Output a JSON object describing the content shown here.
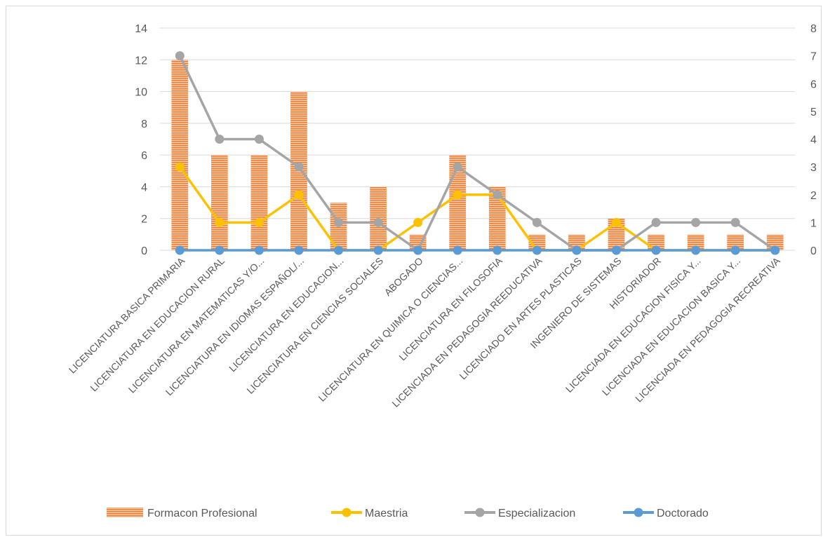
{
  "chart_data": {
    "type": "bar",
    "categories": [
      "LICENCIATURA BASICA PRIMARIA",
      "LICENCIATURA EN EDUCACION RURAL",
      "LICENCIATURA EN MATEMATICAS Y/O...",
      "LICENCIATURA EN IDIOMAS ESPAÑOL/...",
      "LICENCIATURA EN EDUCACION...",
      "LICENCIATURA EN CIENCIAS SOCIALES",
      "ABOGADO",
      "LICENCIATURA EN QUIMICA O CIENCIAS...",
      "LICENCIATURA EN FILOSOFIA",
      "LICENCIADA EN PEDAGOGIA REEDUCATIVA",
      "LICENCIADO EN ARTES PLASTICAS",
      "INGENIERO DE SISTEMAS",
      "HISTORIADOR",
      "LICENCIADA EN EDUCACION FISICA Y...",
      "LICENCIADA EN EDUCACION BASICA Y...",
      "LICENCIADA EN PEDAGOGIA RECREATIVA"
    ],
    "series": [
      {
        "name": "Formacon Profesional",
        "kind": "bar",
        "axis": "left",
        "color": "#ED7D31",
        "values": [
          12,
          6,
          6,
          10,
          3,
          4,
          1,
          6,
          4,
          1,
          1,
          2,
          1,
          1,
          1,
          1
        ]
      },
      {
        "name": "Maestria",
        "kind": "line",
        "axis": "right",
        "color": "#FFC000",
        "values": [
          3,
          1,
          1,
          2,
          0,
          0,
          1,
          2,
          2,
          0,
          0,
          1,
          0,
          0,
          0,
          0
        ]
      },
      {
        "name": "Especializacion",
        "kind": "line",
        "axis": "right",
        "color": "#A5A5A5",
        "values": [
          7,
          4,
          4,
          3,
          1,
          1,
          0,
          3,
          2,
          1,
          0,
          0,
          1,
          1,
          1,
          0
        ]
      },
      {
        "name": "Doctorado",
        "kind": "line",
        "axis": "right",
        "color": "#5B9BD5",
        "values": [
          0,
          0,
          0,
          0,
          0,
          0,
          0,
          0,
          0,
          0,
          0,
          0,
          0,
          0,
          0,
          0
        ]
      }
    ],
    "y_left": {
      "min": 0,
      "max": 14,
      "step": 2
    },
    "y_right": {
      "min": 0,
      "max": 8,
      "step": 1
    },
    "grid": true,
    "legend_position": "bottom"
  }
}
